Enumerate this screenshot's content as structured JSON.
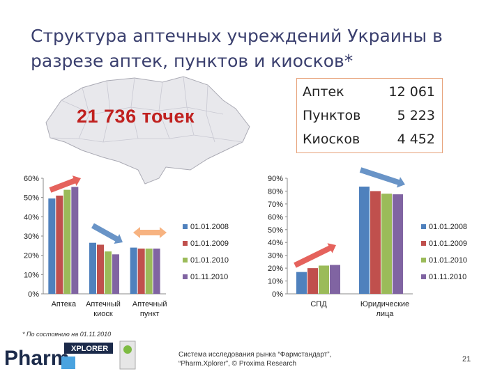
{
  "slide": {
    "title": "Структура аптечных учреждений Украины в разрезе аптек, пунктов и киосков*",
    "total": "21 736 точек",
    "footnote": "* По состоянию на 01.11.2010",
    "source": "Система исследования рынка “Фармстандарт”, “Pharm.Xplorer”, © Proxima Research",
    "page_number": "21",
    "logo": {
      "word": "Pharm",
      "sub": "XPLORER"
    }
  },
  "stats_table": [
    {
      "label": "Аптек",
      "value": "12 061"
    },
    {
      "label": "Пунктов",
      "value": "5 223"
    },
    {
      "label": "Киосков",
      "value": "4 452"
    }
  ],
  "colors": {
    "series": [
      "#4f81bd",
      "#c0504d",
      "#9bbb59",
      "#8064a2"
    ],
    "arrow_red": "#e0473f",
    "arrow_blue": "#4f81bd",
    "arrow_orange": "#f6a66b",
    "title": "#3a3f6e",
    "total": "#c0211f"
  },
  "chart_data": [
    {
      "type": "bar",
      "categories": [
        "Аптека",
        "Аптечный киоск",
        "Аптечный пункт"
      ],
      "series": [
        {
          "name": "01.01.2008",
          "values": [
            49.5,
            26.5,
            24
          ]
        },
        {
          "name": "01.01.2009",
          "values": [
            51,
            25.5,
            23.5
          ]
        },
        {
          "name": "01.01.2010",
          "values": [
            54,
            22,
            23.5
          ]
        },
        {
          "name": "01.11.2010",
          "values": [
            55.5,
            20.5,
            23.5
          ]
        }
      ],
      "ylim": [
        0,
        60
      ],
      "yticks": [
        "0%",
        "10%",
        "20%",
        "30%",
        "40%",
        "50%",
        "60%"
      ],
      "xlabel": "",
      "ylabel": "",
      "title": "",
      "legend": "right",
      "grid": false
    },
    {
      "type": "bar",
      "categories": [
        "СПД",
        "Юридические лица"
      ],
      "series": [
        {
          "name": "01.01.2008",
          "values": [
            17,
            83.5
          ]
        },
        {
          "name": "01.01.2009",
          "values": [
            20,
            80
          ]
        },
        {
          "name": "01.01.2010",
          "values": [
            22,
            78
          ]
        },
        {
          "name": "01.11.2010",
          "values": [
            22.5,
            77.5
          ]
        }
      ],
      "ylim": [
        0,
        90
      ],
      "yticks": [
        "0%",
        "10%",
        "20%",
        "30%",
        "40%",
        "50%",
        "60%",
        "70%",
        "80%",
        "90%"
      ],
      "xlabel": "",
      "ylabel": "",
      "title": "",
      "legend": "right",
      "grid": false
    }
  ]
}
